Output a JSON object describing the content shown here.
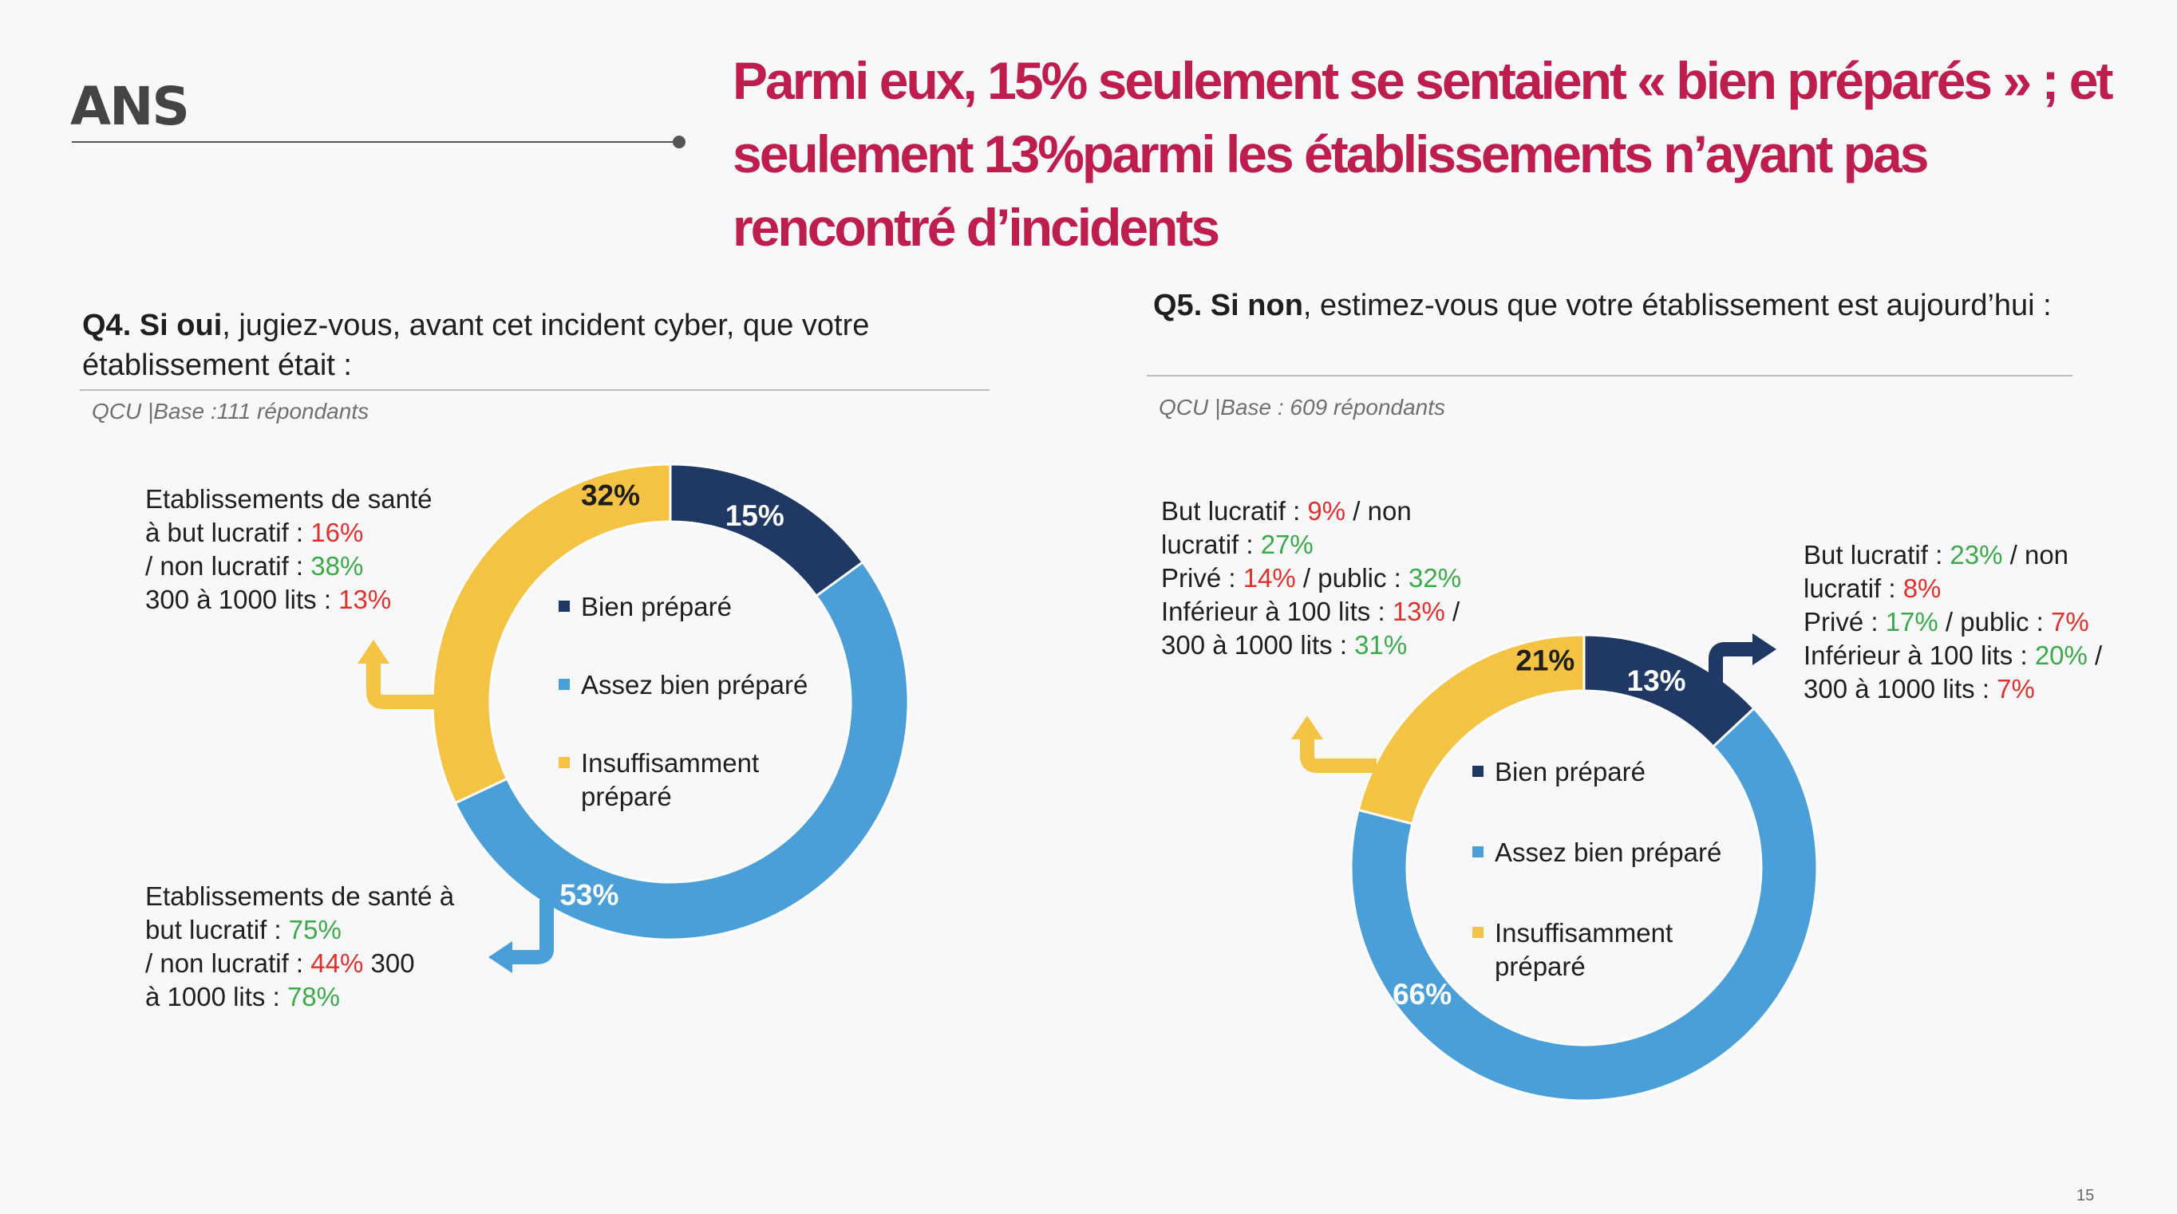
{
  "header": {
    "logo_text": "ANS",
    "title": "Parmi eux, 15% seulement se sentaient « bien préparés » ; et seulement 13%parmi les établissements n’ayant pas rencontré d’incidents"
  },
  "q4": {
    "title_prefix": "Q4. Si oui",
    "title_rest": ", jugiez-vous, avant cet incident cyber, que votre établissement était :",
    "base": "QCU |Base :111 répondants",
    "note_top": {
      "l1": "Etablissements de santé",
      "l2a": "à but lucratif : ",
      "l2b": "16%",
      "l3a": "/ non lucratif : ",
      "l3b": "38%",
      "l4a": "300 à 1000 lits : ",
      "l4b": "13%"
    },
    "note_bottom": {
      "l1": "Etablissements de santé à",
      "l2a": "but lucratif : ",
      "l2b": "75%",
      "l3a": "/ non lucratif : ",
      "l3b": "44%",
      "l3c": " 300",
      "l4a": "à 1000 lits : ",
      "l4b": "78%"
    }
  },
  "q5": {
    "title_prefix": "Q5. Si non",
    "title_rest": ", estimez-vous que votre établissement est aujourd’hui :",
    "base": "QCU |Base : 609 répondants",
    "note_left": {
      "l1a": "But lucratif : ",
      "l1b": "9%",
      "l1c": " / non",
      "l2a": "lucratif : ",
      "l2b": "27%",
      "l3a": "Privé : ",
      "l3b": "14%",
      "l3c": " / public : ",
      "l3d": "32%",
      "l4a": "Inférieur à 100 lits : ",
      "l4b": "13%",
      "l4c": " /",
      "l5a": "300 à 1000 lits : ",
      "l5b": "31%"
    },
    "note_right": {
      "l1a": "But lucratif : ",
      "l1b": "23%",
      "l1c": " / non",
      "l2a": "lucratif : ",
      "l2b": "8%",
      "l3a": "Privé : ",
      "l3b": "17%",
      "l3c": " / public : ",
      "l3d": "7%",
      "l4a": "Inférieur à 100 lits : ",
      "l4b": "20%",
      "l4c": " /",
      "l5a": "300 à 1000 lits : ",
      "l5b": "7%"
    }
  },
  "chart_data": [
    {
      "type": "pie",
      "donut": true,
      "title": "",
      "categories": [
        "Bien préparé",
        "Assez bien préparé",
        "Insuffisamment préparé"
      ],
      "values": [
        15,
        53,
        32
      ],
      "labels": [
        "15%",
        "53%",
        "32%"
      ],
      "colors": [
        "#1f3864",
        "#4a9fd8",
        "#f4c343"
      ],
      "legend_position": "center"
    },
    {
      "type": "pie",
      "donut": true,
      "title": "",
      "categories": [
        "Bien préparé",
        "Assez bien préparé",
        "Insuffisamment préparé"
      ],
      "values": [
        13,
        66,
        21
      ],
      "labels": [
        "13%",
        "66%",
        "21%"
      ],
      "colors": [
        "#1f3864",
        "#4a9fd8",
        "#f4c343"
      ],
      "legend_position": "center"
    }
  ],
  "legend": {
    "item1": "Bien préparé",
    "item2": "Assez bien préparé",
    "item3a": "Insuffisamment",
    "item3b": "préparé"
  },
  "page_number": "15"
}
